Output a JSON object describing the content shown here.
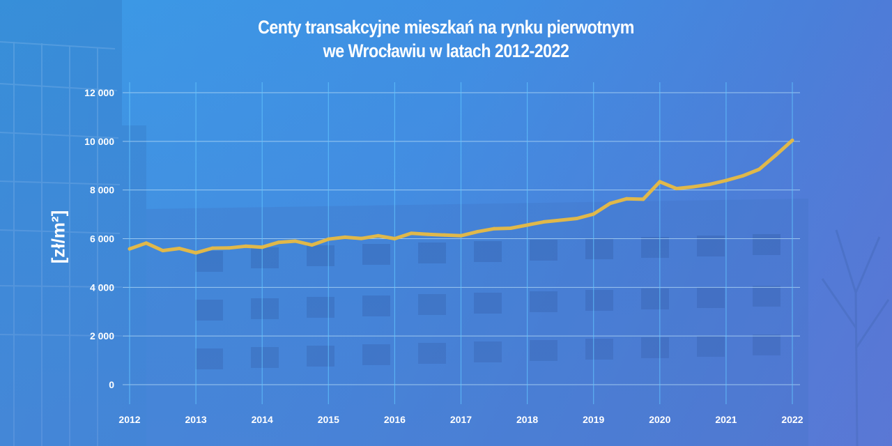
{
  "chart_data": {
    "type": "line",
    "title_lines": [
      "Centy transakcyjne mieszkań na rynku pierwotnym",
      "we Wrocławiu w latach 2012-2022"
    ],
    "ylabel": "[zł/m²]",
    "xlabel": "",
    "ylim": [
      0,
      12000
    ],
    "xlim": [
      2012,
      2022
    ],
    "y_ticks": [
      {
        "value": 0,
        "label": "0"
      },
      {
        "value": 2000,
        "label": "2 000"
      },
      {
        "value": 4000,
        "label": "4 000"
      },
      {
        "value": 6000,
        "label": "6 000"
      },
      {
        "value": 8000,
        "label": "8 000"
      },
      {
        "value": 10000,
        "label": "10 000"
      },
      {
        "value": 12000,
        "label": "12 000"
      }
    ],
    "x_ticks": [
      {
        "value": 2012,
        "label": "2012"
      },
      {
        "value": 2013,
        "label": "2013"
      },
      {
        "value": 2014,
        "label": "2014"
      },
      {
        "value": 2015,
        "label": "2015"
      },
      {
        "value": 2016,
        "label": "2016"
      },
      {
        "value": 2017,
        "label": "2017"
      },
      {
        "value": 2018,
        "label": "2018"
      },
      {
        "value": 2019,
        "label": "2019"
      },
      {
        "value": 2020,
        "label": "2020"
      },
      {
        "value": 2021,
        "label": "2021"
      },
      {
        "value": 2022,
        "label": "2022"
      }
    ],
    "grid": true,
    "line_color": "#e0b84a",
    "grid_color": "#b9def8",
    "series": [
      {
        "x": [
          2012.0,
          2012.25,
          2012.5,
          2012.75,
          2013.0,
          2013.25,
          2013.5,
          2013.75,
          2014.0,
          2014.25,
          2014.5,
          2014.75,
          2015.0,
          2015.25,
          2015.5,
          2015.75,
          2016.0,
          2016.25,
          2016.5,
          2016.75,
          2017.0,
          2017.25,
          2017.5,
          2017.75,
          2018.0,
          2018.25,
          2018.5,
          2018.75,
          2019.0,
          2019.25,
          2019.5,
          2019.75,
          2020.0,
          2020.25,
          2020.5,
          2020.75,
          2021.0,
          2021.25,
          2021.5,
          2021.75,
          2022.0
        ],
        "y": [
          5580,
          5820,
          5510,
          5600,
          5420,
          5610,
          5620,
          5690,
          5650,
          5850,
          5900,
          5740,
          5980,
          6060,
          6010,
          6120,
          6000,
          6220,
          6180,
          6150,
          6120,
          6290,
          6410,
          6430,
          6560,
          6690,
          6760,
          6830,
          7010,
          7450,
          7640,
          7620,
          8340,
          8060,
          8130,
          8230,
          8390,
          8580,
          8850,
          9430,
          10040
        ]
      }
    ]
  }
}
